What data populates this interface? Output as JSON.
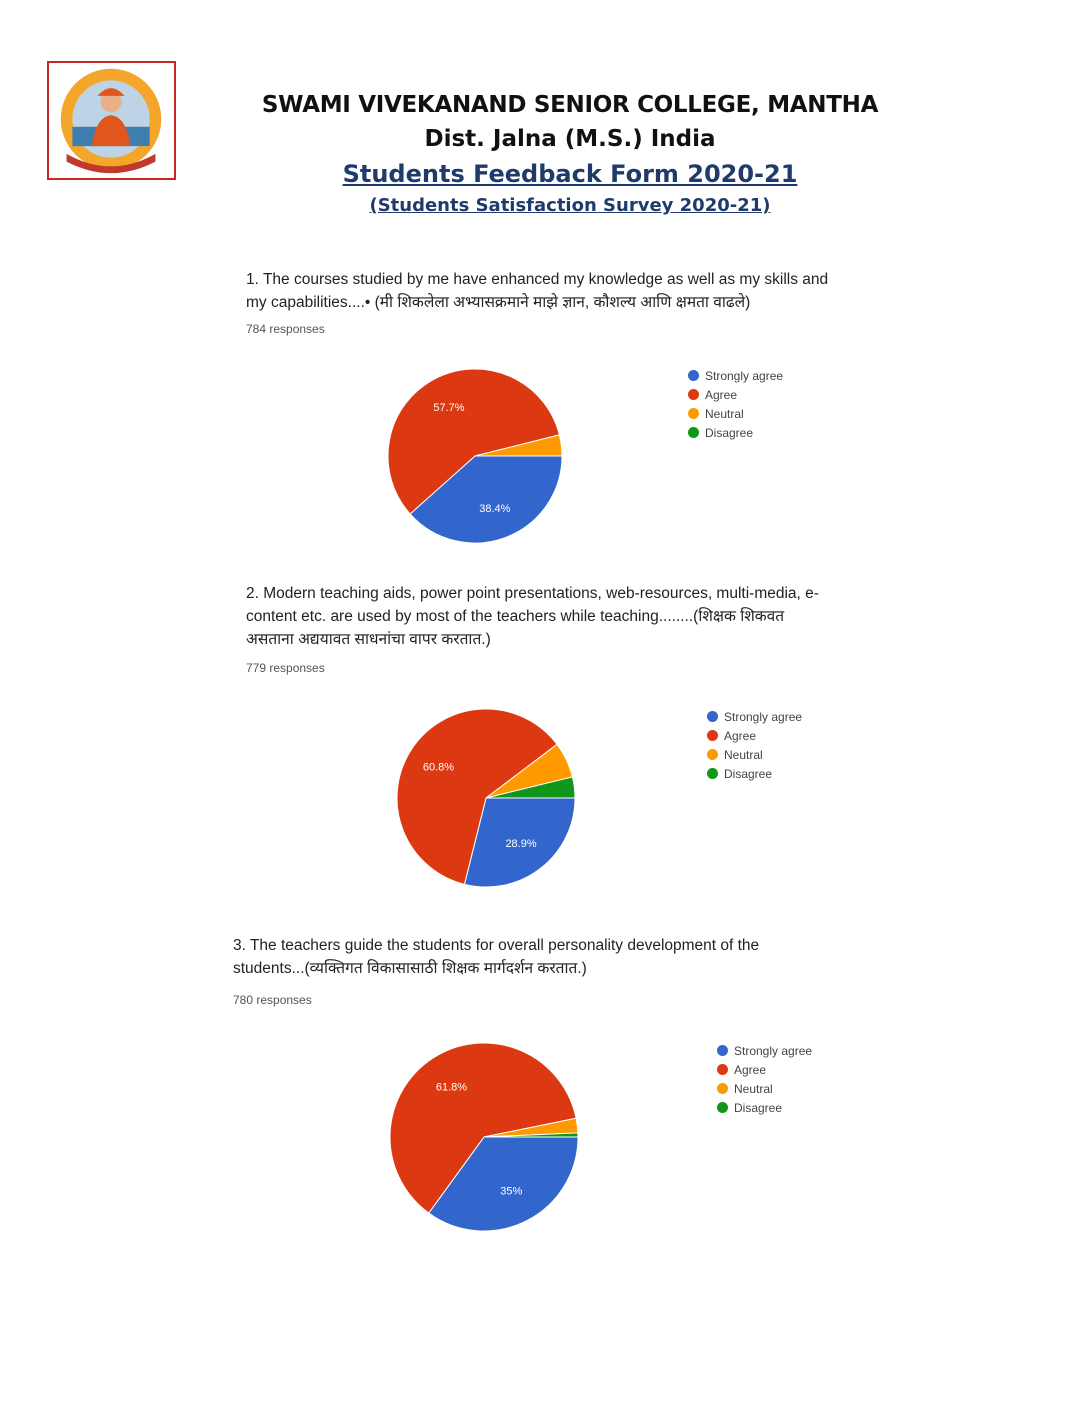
{
  "header": {
    "college": "SWAMI VIVEKANAND SENIOR COLLEGE, MANTHA",
    "district": "Dist. Jalna (M.S.) India",
    "form_title": "Students Feedback Form 2020-21",
    "survey_title": "(Students Satisfaction Survey 2020-21)"
  },
  "colors": {
    "strongly_agree": "#3366cc",
    "agree": "#dc3912",
    "neutral": "#ff9900",
    "disagree": "#109618"
  },
  "questions": [
    {
      "line1": "1. The courses studied by me have enhanced my knowledge as well as my skills and",
      "line2": "my capabilities....•       (मी शिकलेला अभ्यासक्रमाने माझे ज्ञान, कौशल्य आणि क्षमता वाढले)",
      "line3": "",
      "responses": "784 responses"
    },
    {
      "line1": "2. Modern teaching aids, power point presentations, web-resources, multi-media, e-",
      "line2": "content etc. are used by most of the teachers while teaching........(शिक्षक शिकवत",
      "line3": "असताना अद्ययावत साधनांचा वापर करतात.)",
      "responses": "779 responses"
    },
    {
      "line1": "3. The teachers guide the students for overall personality development of the",
      "line2": "students...(व्यक्तिगत विकासासाठी शिक्षक मार्गदर्शन करतात.)",
      "line3": "",
      "responses": "780 responses"
    }
  ],
  "chart_data": [
    {
      "type": "pie",
      "categories": [
        "Strongly agree",
        "Agree",
        "Neutral",
        "Disagree"
      ],
      "values": [
        38.4,
        57.7,
        3.9,
        0
      ],
      "data_labels": [
        "38.4%",
        "57.7%",
        "",
        ""
      ],
      "legend_position": "right"
    },
    {
      "type": "pie",
      "categories": [
        "Strongly agree",
        "Agree",
        "Neutral",
        "Disagree"
      ],
      "values": [
        28.9,
        60.8,
        6.5,
        3.8
      ],
      "data_labels": [
        "28.9%",
        "60.8%",
        "",
        ""
      ],
      "legend_position": "right"
    },
    {
      "type": "pie",
      "categories": [
        "Strongly agree",
        "Agree",
        "Neutral",
        "Disagree"
      ],
      "values": [
        35.0,
        61.8,
        2.5,
        0.7
      ],
      "data_labels": [
        "35%",
        "61.8%",
        "",
        ""
      ],
      "legend_position": "right"
    }
  ]
}
